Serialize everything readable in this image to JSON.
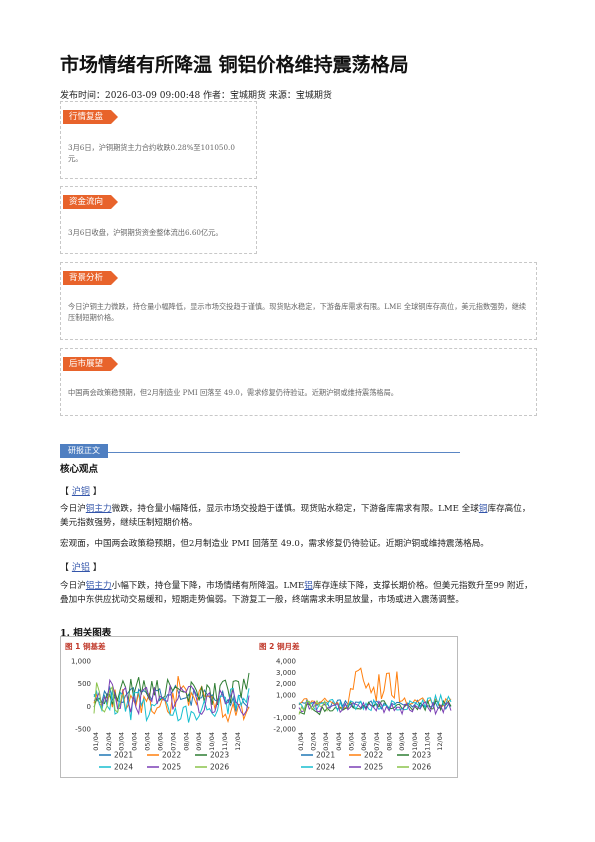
{
  "title": "市场情绪有所降温 铜铝价格维持震荡格局",
  "meta": "发布时间：2026-03-09 09:00:48 作者：宝城期货 来源：宝城期货",
  "boxes": [
    {
      "tag": "行情复盘",
      "text": "3月6日，沪铜期货主力合约收跌0.28%至101050.0元。"
    },
    {
      "tag": "资金流向",
      "text": "3月6日收盘，沪铜期货资金整体流出6.60亿元。"
    },
    {
      "tag": "背景分析",
      "text": "今日沪铜主力微跌，持仓量小幅降低，显示市场交投趋于谨慎。现货贴水稳定，下游备库需求有限。LME 全球铜库存高位，美元指数强势，继续压制短期价格。"
    },
    {
      "tag": "后市展望",
      "text": "中国两会政策稳预期，但2月制造业 PMI 回落至 49.0，需求修复仍待验证。近期沪铜或维持震荡格局。"
    }
  ],
  "section": "研报正文",
  "core": "核心观点",
  "copper": {
    "tag": "沪铜",
    "p1_a": "今日沪",
    "p1_link": "铜主力",
    "p1_b": "微跌，持仓量小幅降低，显示市场交投趋于谨慎。现货贴水稳定，下游备库需求有限。LME 全球",
    "p1_link2": "铜",
    "p1_c": "库存高位，美元指数强势，继续压制短期价格。",
    "p2": "宏观面，中国两会政策稳预期，但2月制造业 PMI 回落至 49.0，需求修复仍待验证。近期沪铜或维持震荡格局。"
  },
  "aluminum": {
    "tag": "沪铝",
    "p_a": "今日沪",
    "p_link": "铝主力",
    "p_b": "小幅下跌，持仓量下降，市场情绪有所降温。LME",
    "p_link2": "铝",
    "p_c": "库存连续下降，支撑长期价格。但美元指数升至99 附近，叠加中东供应扰动交易缓和，短期走势偏弱。下游复工一般，终端需求未明显放量，市场或进入震荡调整。"
  },
  "charts_heading": "1. 相关图表",
  "chart_data": [
    {
      "type": "line",
      "title": "图 1  铜基差",
      "yticks": [
        "1,000",
        "500",
        "0",
        "-500"
      ],
      "ylim": [
        -500,
        1000
      ],
      "xticks": [
        "01/04",
        "02/04",
        "03/04",
        "04/04",
        "05/04",
        "06/04",
        "07/04",
        "08/04",
        "09/04",
        "10/04",
        "11/04",
        "12/04"
      ],
      "legend": [
        "2021",
        "2022",
        "2023",
        "2024",
        "2025",
        "2026"
      ],
      "colors": {
        "2021": "#1f77b4",
        "2022": "#ff7f0e",
        "2023": "#2e7d32",
        "2024": "#17becf",
        "2025": "#7b3fb5",
        "2026": "#8bc34a"
      }
    },
    {
      "type": "line",
      "title": "图 2  铜月差",
      "yticks": [
        "4,000",
        "3,000",
        "2,000",
        "1,000",
        "0",
        "-1,000",
        "-2,000"
      ],
      "ylim": [
        -2000,
        4000
      ],
      "xticks": [
        "01/04",
        "02/04",
        "03/04",
        "04/04",
        "05/04",
        "06/04",
        "07/04",
        "08/04",
        "09/04",
        "10/04",
        "11/04",
        "12/04"
      ],
      "legend": [
        "2021",
        "2022",
        "2023",
        "2024",
        "2025",
        "2026"
      ],
      "colors": {
        "2021": "#1f77b4",
        "2022": "#ff7f0e",
        "2023": "#2e7d32",
        "2024": "#17becf",
        "2025": "#7b3fb5",
        "2026": "#8bc34a"
      }
    }
  ]
}
